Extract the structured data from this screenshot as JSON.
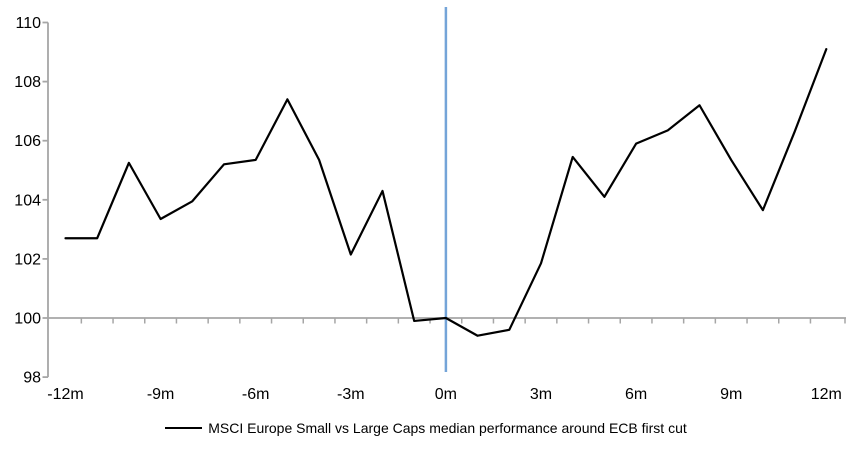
{
  "chart_data": {
    "type": "line",
    "title": "",
    "xlabel": "",
    "ylabel": "",
    "x_unit": "months relative to ECB first cut",
    "x": [
      -12,
      -11,
      -10,
      -9,
      -8,
      -7,
      -6,
      -5,
      -4,
      -3,
      -2,
      -1,
      0,
      1,
      2,
      3,
      4,
      5,
      6,
      7,
      8,
      9,
      10,
      11,
      12
    ],
    "series": [
      {
        "name": "MSCI Europe Small vs Large Caps median performance around ECB first cut",
        "values": [
          102.7,
          102.7,
          105.25,
          103.35,
          103.95,
          105.2,
          105.35,
          107.4,
          105.35,
          102.15,
          104.3,
          99.9,
          100.0,
          99.4,
          99.6,
          101.85,
          105.45,
          104.1,
          105.9,
          106.35,
          107.2,
          105.35,
          103.65,
          106.3,
          109.1
        ]
      }
    ],
    "ylim": [
      98,
      110
    ],
    "yticks": [
      110,
      108,
      106,
      104,
      102,
      100,
      98
    ],
    "xticks": [
      {
        "month": -12,
        "label": "-12m"
      },
      {
        "month": -9,
        "label": "-9m"
      },
      {
        "month": -6,
        "label": "-6m"
      },
      {
        "month": -3,
        "label": "-3m"
      },
      {
        "month": 0,
        "label": "0m"
      },
      {
        "month": 3,
        "label": "3m"
      },
      {
        "month": 6,
        "label": "6m"
      },
      {
        "month": 9,
        "label": "9m"
      },
      {
        "month": 12,
        "label": "12m"
      }
    ],
    "x_axis_crosses_at": 100,
    "event_line_at_month": 0,
    "grid": "off",
    "legend": "MSCI Europe Small vs Large Caps median performance around ECB first cut",
    "legend_position": "bottom-center",
    "colors": {
      "series_line": "#000000",
      "event_line": "#74A4D8",
      "axis": "#A6A6A6",
      "text": "#000000",
      "background": "#FFFFFF"
    }
  }
}
